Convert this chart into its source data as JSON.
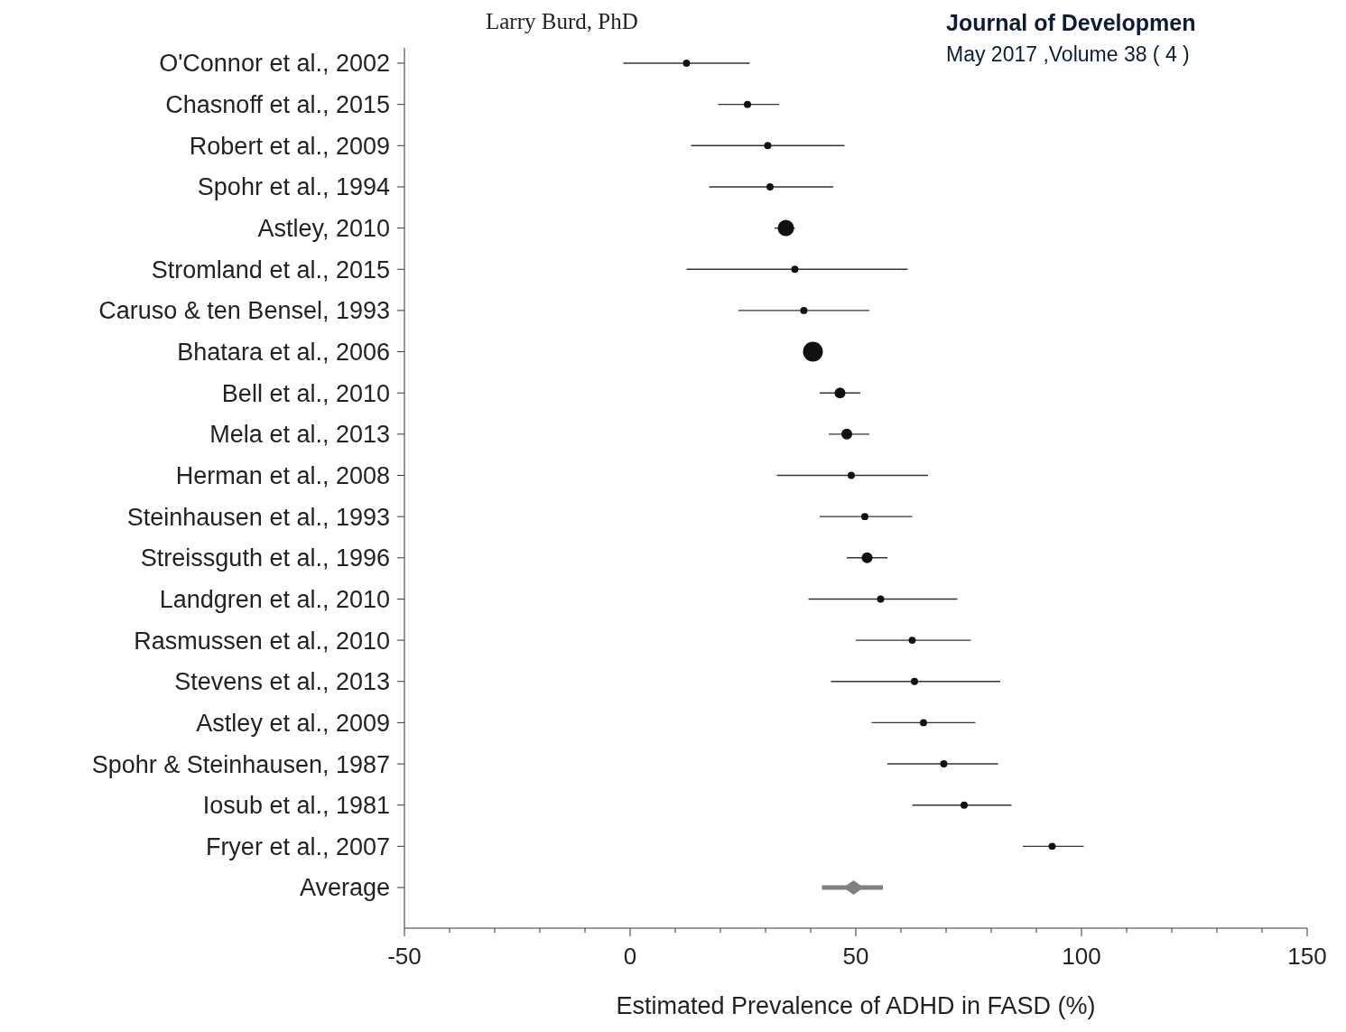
{
  "chart_data": {
    "type": "bubble",
    "orientation": "horizontal",
    "xlabel": "Estimated Prevalence of ADHD in FASD (%)",
    "annotations": [
      "Larry Burd, PhD",
      "Journal of Developmen",
      "May 2017 ,Volume 38 ( 4 )"
    ],
    "categories": [
      "O'Connor et al., 2002",
      "Chasnoff et al., 2015",
      "Robert et al., 2009",
      "Spohr et al., 1994",
      "Astley, 2010",
      "Stromland et al., 2015",
      "Caruso & ten Bensel, 1993",
      "Bhatara et al., 2006",
      "Bell et al., 2010",
      "Mela et al., 2013",
      "Herman et al., 2008",
      "Steinhausen et al., 1993",
      "Streissguth et al., 1996",
      "Landgren et al., 2010",
      "Rasmussen et al., 2010",
      "Stevens et al., 2013",
      "Astley et al., 2009",
      "Spohr & Steinhausen, 1987",
      "Iosub et al., 1981",
      "Fryer et al., 2007",
      "Average"
    ],
    "xlim": [
      -50,
      150
    ],
    "xticks": [
      -50,
      {
        "value": -40,
        "label": null
      },
      {
        "value": -30,
        "label": null
      },
      {
        "value": -20,
        "label": null
      },
      {
        "value": -10,
        "label": null
      },
      0,
      {
        "value": 10,
        "label": null
      },
      {
        "value": 20,
        "label": null
      },
      {
        "value": 30,
        "label": null
      },
      {
        "value": 40,
        "label": null
      },
      50,
      {
        "value": 60,
        "label": null
      },
      {
        "value": 70,
        "label": null
      },
      {
        "value": 80,
        "label": null
      },
      {
        "value": 90,
        "label": null
      },
      100,
      {
        "value": 110,
        "label": null
      },
      {
        "value": 120,
        "label": null
      },
      {
        "value": 130,
        "label": null
      },
      {
        "value": 140,
        "label": null
      },
      150
    ],
    "series": [
      {
        "color": "#111111",
        "values": [
          12.5,
          26,
          30.5,
          31,
          34.5,
          36.5,
          38.5,
          40.5,
          46.5,
          48,
          49,
          52,
          52.5,
          55.5,
          62.5,
          63,
          65,
          69.5,
          74,
          93.5,
          null
        ],
        "sizes": [
          0.13,
          0.13,
          0.13,
          0.13,
          0.67,
          0.13,
          0.13,
          1,
          0.3,
          0.3,
          0.13,
          0.13,
          0.3,
          0.13,
          0.13,
          0.13,
          0.13,
          0.13,
          0.13,
          0.13,
          null
        ],
        "errors": [
          [
            -1.5,
            26.5
          ],
          [
            19.5,
            33
          ],
          [
            13.5,
            47.5
          ],
          [
            17.5,
            45
          ],
          [
            32,
            36.5
          ],
          [
            12.5,
            61.5
          ],
          [
            24,
            53
          ],
          null,
          [
            42,
            51
          ],
          [
            44,
            53
          ],
          [
            32.5,
            66
          ],
          [
            42,
            62.5
          ],
          [
            48,
            57
          ],
          [
            39.5,
            72.5
          ],
          [
            50,
            75.5
          ],
          [
            44.5,
            82
          ],
          [
            53.5,
            76.5
          ],
          [
            57,
            81.5
          ],
          [
            62.5,
            84.5
          ],
          [
            87,
            100.5
          ],
          null
        ]
      },
      {
        "type": "scatter",
        "marker": "diamond",
        "color": "#808080",
        "values": [
          null,
          null,
          null,
          null,
          null,
          null,
          null,
          null,
          null,
          null,
          null,
          null,
          null,
          null,
          null,
          null,
          null,
          null,
          null,
          null,
          49.5
        ],
        "errors": [
          null,
          null,
          null,
          null,
          null,
          null,
          null,
          null,
          null,
          null,
          null,
          null,
          null,
          null,
          null,
          null,
          null,
          null,
          null,
          null,
          [
            42.5,
            56
          ]
        ]
      }
    ]
  }
}
